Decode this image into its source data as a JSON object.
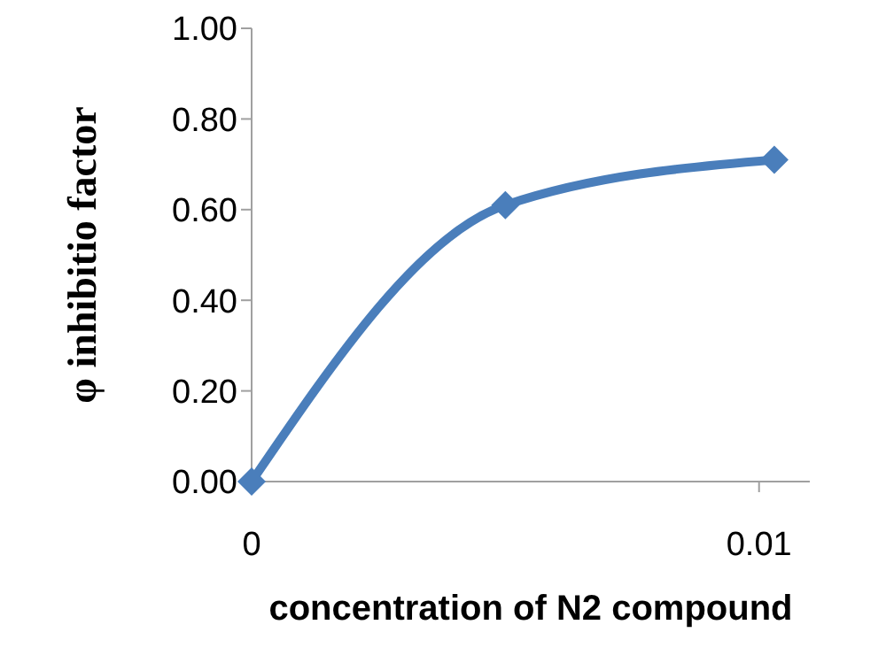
{
  "chart_data": {
    "type": "line",
    "xlabel": "concentration of N2 compound",
    "ylabel": "φ inhibitio factor",
    "x": [
      0,
      0.005,
      0.0103
    ],
    "series": [
      {
        "color": "#4a7ebb",
        "values": [
          0,
          0.61,
          0.71
        ]
      }
    ],
    "xlim": [
      0,
      0.011
    ],
    "xticks": [
      0,
      0.01
    ],
    "ylim": [
      0,
      1
    ],
    "yticks": [
      {
        "value": 0,
        "label": "0.00"
      },
      {
        "value": 0.2,
        "label": "0.20"
      },
      {
        "value": 0.4,
        "label": "0.40"
      },
      {
        "value": 0.6,
        "label": "0.60"
      },
      {
        "value": 0.8,
        "label": "0.80"
      },
      {
        "value": 1,
        "label": "1.00"
      }
    ],
    "marker": "diamond",
    "line_style": "solid",
    "grid": false,
    "legend": false
  }
}
